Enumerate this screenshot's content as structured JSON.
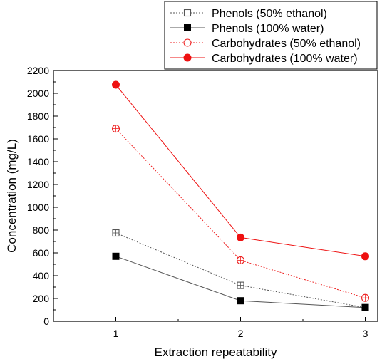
{
  "chart_data": {
    "type": "line",
    "title": "",
    "xlabel": "Extraction repeatability",
    "ylabel": "Concentration (mg/L)",
    "x": [
      1,
      2,
      3
    ],
    "x_ticks": [
      "1",
      "2",
      "3"
    ],
    "xlim": [
      0.5,
      3.1
    ],
    "ylim": [
      0,
      2200
    ],
    "y_ticks": [
      "0",
      "200",
      "400",
      "600",
      "800",
      "1000",
      "1200",
      "1400",
      "1600",
      "1800",
      "2000",
      "2200"
    ],
    "grid": false,
    "legend_position": "top-right",
    "series": [
      {
        "name": "Phenols (50% ethanol)",
        "values": [
          775,
          315,
          120
        ],
        "color": "#555555",
        "dash": "dotted",
        "marker": "open-square"
      },
      {
        "name": "Phenols (100% water)",
        "values": [
          570,
          180,
          120
        ],
        "color": "#555555",
        "dash": "solid",
        "marker": "filled-square"
      },
      {
        "name": "Carbohydrates (50% ethanol)",
        "values": [
          1690,
          535,
          205
        ],
        "color": "#ee2222",
        "dash": "dotted",
        "marker": "open-circle"
      },
      {
        "name": "Carbohydrates (100% water)",
        "values": [
          2075,
          735,
          570
        ],
        "color": "#ee1111",
        "dash": "solid",
        "marker": "filled-circle"
      }
    ]
  }
}
